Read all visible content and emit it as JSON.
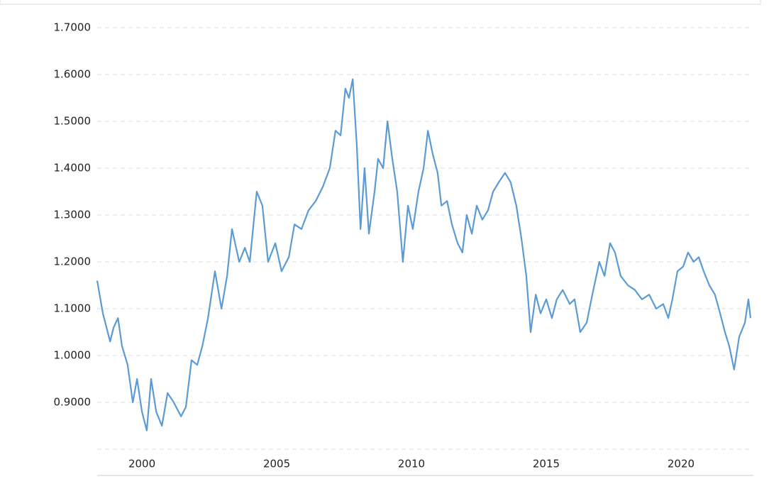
{
  "chart_data": {
    "type": "line",
    "x": [
      1998.34,
      1998.55,
      1998.82,
      1998.95,
      1999.11,
      1999.26,
      1999.47,
      1999.66,
      1999.82,
      2000.0,
      2000.18,
      2000.34,
      2000.53,
      2000.74,
      2000.95,
      2001.18,
      2001.45,
      2001.63,
      2001.84,
      2002.05,
      2002.24,
      2002.45,
      2002.71,
      2002.95,
      2003.16,
      2003.34,
      2003.61,
      2003.82,
      2004.0,
      2004.26,
      2004.47,
      2004.68,
      2004.95,
      2005.18,
      2005.45,
      2005.66,
      2005.92,
      2006.18,
      2006.45,
      2006.71,
      2006.97,
      2007.18,
      2007.37,
      2007.55,
      2007.68,
      2007.82,
      2007.97,
      2008.11,
      2008.26,
      2008.42,
      2008.63,
      2008.76,
      2008.95,
      2009.11,
      2009.29,
      2009.47,
      2009.68,
      2009.87,
      2010.05,
      2010.26,
      2010.45,
      2010.61,
      2010.79,
      2010.97,
      2011.11,
      2011.32,
      2011.5,
      2011.71,
      2011.89,
      2012.05,
      2012.24,
      2012.42,
      2012.63,
      2012.84,
      2013.03,
      2013.24,
      2013.47,
      2013.68,
      2013.89,
      2014.08,
      2014.26,
      2014.42,
      2014.61,
      2014.79,
      2015.0,
      2015.21,
      2015.39,
      2015.61,
      2015.87,
      2016.05,
      2016.26,
      2016.5,
      2016.71,
      2016.97,
      2017.16,
      2017.37,
      2017.55,
      2017.76,
      2018.03,
      2018.29,
      2018.55,
      2018.82,
      2019.08,
      2019.34,
      2019.53,
      2019.68,
      2019.87,
      2020.08,
      2020.26,
      2020.47,
      2020.66,
      2020.84,
      2021.05,
      2021.26,
      2021.45,
      2021.63,
      2021.79,
      2021.97,
      2022.16,
      2022.37,
      2022.5,
      2022.58
    ],
    "series": [
      {
        "color": "#5b9bd5",
        "values": [
          1.16,
          1.09,
          1.03,
          1.06,
          1.08,
          1.02,
          0.98,
          0.9,
          0.95,
          0.88,
          0.84,
          0.95,
          0.88,
          0.85,
          0.92,
          0.9,
          0.87,
          0.89,
          0.99,
          0.98,
          1.02,
          1.08,
          1.18,
          1.1,
          1.17,
          1.27,
          1.2,
          1.23,
          1.2,
          1.35,
          1.32,
          1.2,
          1.24,
          1.18,
          1.21,
          1.28,
          1.27,
          1.31,
          1.33,
          1.36,
          1.4,
          1.48,
          1.47,
          1.57,
          1.55,
          1.59,
          1.45,
          1.27,
          1.4,
          1.26,
          1.35,
          1.42,
          1.4,
          1.5,
          1.42,
          1.35,
          1.2,
          1.32,
          1.27,
          1.35,
          1.4,
          1.48,
          1.43,
          1.39,
          1.32,
          1.33,
          1.28,
          1.24,
          1.22,
          1.3,
          1.26,
          1.32,
          1.29,
          1.31,
          1.35,
          1.37,
          1.39,
          1.37,
          1.32,
          1.25,
          1.17,
          1.05,
          1.13,
          1.09,
          1.12,
          1.08,
          1.12,
          1.14,
          1.11,
          1.12,
          1.05,
          1.07,
          1.13,
          1.2,
          1.17,
          1.24,
          1.22,
          1.17,
          1.15,
          1.14,
          1.12,
          1.13,
          1.1,
          1.11,
          1.08,
          1.12,
          1.18,
          1.19,
          1.22,
          1.2,
          1.21,
          1.18,
          1.15,
          1.13,
          1.09,
          1.05,
          1.02,
          0.97,
          1.04,
          1.07,
          1.12,
          1.08
        ]
      }
    ],
    "xlim": [
      1998.34,
      2022.58
    ],
    "xticks": [
      2000,
      2005,
      2010,
      2015,
      2020
    ],
    "ylim": [
      0.8,
      1.7
    ],
    "yticks": [
      {
        "value": 0.9,
        "label": "0.9000"
      },
      {
        "value": 1.0,
        "label": "1.0000"
      },
      {
        "value": 1.1,
        "label": "1.1000"
      },
      {
        "value": 1.2,
        "label": "1.2000"
      },
      {
        "value": 1.3,
        "label": "1.3000"
      },
      {
        "value": 1.4,
        "label": "1.4000"
      },
      {
        "value": 1.5,
        "label": "1.5000"
      },
      {
        "value": 1.6,
        "label": "1.6000"
      },
      {
        "value": 1.7,
        "label": "1.7000"
      }
    ],
    "grid": true
  }
}
